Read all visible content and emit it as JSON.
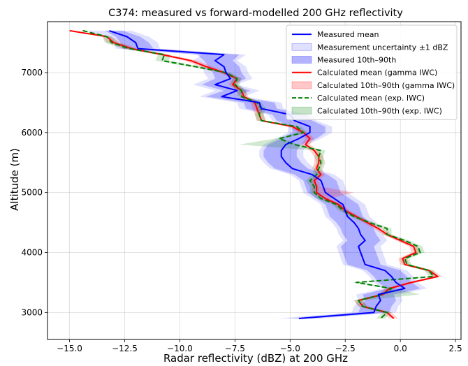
{
  "chart_data": {
    "type": "line",
    "title": "C374: measured vs forward-modelled 200 GHz reflectivity",
    "xlabel": "Radar reflectivity (dBZ) at 200 GHz",
    "ylabel": "Altitude (m)",
    "xlim": [
      -16,
      2.75
    ],
    "ylim": [
      2550,
      7850
    ],
    "xticks": [
      -15,
      -12.5,
      -10,
      -7.5,
      -5,
      -2.5,
      0,
      2.5
    ],
    "xtick_labels": [
      "−15.0",
      "−12.5",
      "−10.0",
      "−7.5",
      "−5.0",
      "−2.5",
      "0.0",
      "2.5"
    ],
    "yticks": [
      3000,
      4000,
      5000,
      6000,
      7000
    ],
    "ytick_labels": [
      "3000",
      "4000",
      "5000",
      "6000",
      "7000"
    ],
    "grid": true,
    "legend_position": "top-right",
    "altitude": [
      7700,
      7600,
      7500,
      7400,
      7300,
      7200,
      7100,
      7000,
      6900,
      6800,
      6700,
      6600,
      6500,
      6400,
      6300,
      6200,
      6100,
      6000,
      5900,
      5800,
      5700,
      5600,
      5500,
      5400,
      5300,
      5200,
      5100,
      5000,
      4900,
      4800,
      4700,
      4600,
      4500,
      4400,
      4300,
      4200,
      4100,
      4000,
      3900,
      3800,
      3700,
      3600,
      3500,
      3400,
      3300,
      3200,
      3100,
      3000,
      2900
    ],
    "series": [
      {
        "name": "Measured mean",
        "style": "solid",
        "color": "#0000ff",
        "values": [
          -13.2,
          -12.4,
          -12.0,
          -11.9,
          -8.0,
          -8.4,
          -8.0,
          -7.9,
          -7.7,
          -8.4,
          -7.4,
          -8.1,
          -6.4,
          -6.3,
          -5.0,
          -4.8,
          -4.1,
          -4.1,
          -4.6,
          -5.2,
          -5.4,
          -5.4,
          -5.2,
          -4.9,
          -4.0,
          -3.6,
          -3.5,
          -3.4,
          -3.0,
          -2.6,
          -2.5,
          -2.4,
          -2.1,
          -1.9,
          -1.8,
          -1.6,
          -1.9,
          -1.8,
          -1.7,
          -1.6,
          -0.7,
          -0.4,
          -0.2,
          0.2,
          -1.0,
          -0.9,
          -1.1,
          -1.2,
          -4.6
        ]
      },
      {
        "name": "Calculated mean (gamma IWC)",
        "style": "solid",
        "color": "#ff0000",
        "values": [
          -15.0,
          -13.3,
          -13.0,
          -12.2,
          -10.8,
          -9.5,
          -8.8,
          -8.0,
          -7.4,
          -7.6,
          -7.2,
          -7.1,
          -6.6,
          -6.5,
          -6.4,
          -6.3,
          -4.9,
          -4.4,
          -4.1,
          -4.3,
          -3.9,
          -3.7,
          -3.7,
          -3.8,
          -3.6,
          -3.9,
          -3.8,
          -3.8,
          -3.4,
          -2.8,
          -2.5,
          -2.0,
          -1.5,
          -1.0,
          -0.6,
          0.0,
          0.6,
          0.7,
          0.1,
          0.2,
          1.3,
          1.7,
          0.5,
          -0.5,
          -0.8,
          -1.9,
          -1.7,
          -0.6,
          -0.3
        ]
      },
      {
        "name": "Calculated mean (exp. IWC)",
        "style": "dashed",
        "color": "#008000",
        "values": [
          -14.4,
          -13.3,
          -13.1,
          -12.3,
          -10.7,
          -10.8,
          -9.3,
          -7.9,
          -7.4,
          -7.5,
          -7.2,
          -7.2,
          -6.5,
          -6.3,
          -6.4,
          -6.3,
          -4.7,
          -4.4,
          -5.5,
          -4.8,
          -3.6,
          -3.7,
          -3.6,
          -3.7,
          -3.8,
          -4.1,
          -3.9,
          -3.9,
          -3.6,
          -2.9,
          -2.6,
          -2.1,
          -1.4,
          -0.6,
          -0.6,
          0.2,
          0.8,
          0.9,
          0.2,
          0.3,
          1.3,
          1.5,
          -2.0,
          -0.4,
          -0.8,
          -1.9,
          -1.7,
          -0.6,
          -0.9
        ]
      }
    ],
    "bands": [
      {
        "name": "Measurement uncertainty ±1 dBZ",
        "color": "#0000ff",
        "opacity": 0.12,
        "low": [
          -14.2,
          -13.4,
          -13.0,
          -12.9,
          -9.0,
          -9.4,
          -9.0,
          -8.9,
          -8.7,
          -9.4,
          -8.4,
          -9.1,
          -7.4,
          -7.3,
          -6.0,
          -5.8,
          -5.1,
          -5.1,
          -5.6,
          -6.2,
          -6.4,
          -6.4,
          -6.2,
          -5.9,
          -5.0,
          -4.6,
          -4.5,
          -4.4,
          -4.0,
          -3.6,
          -3.5,
          -3.4,
          -3.1,
          -2.9,
          -2.8,
          -2.6,
          -2.9,
          -2.8,
          -2.7,
          -2.6,
          -1.7,
          -1.4,
          -1.2,
          -0.8,
          -2.0,
          -1.9,
          -2.1,
          -2.2,
          -5.6
        ],
        "high": [
          -12.2,
          -11.4,
          -11.0,
          -10.9,
          -7.0,
          -7.4,
          -7.0,
          -6.9,
          -6.7,
          -7.4,
          -6.4,
          -7.1,
          -5.4,
          -5.3,
          -4.0,
          -3.8,
          -3.1,
          -3.1,
          -3.6,
          -4.2,
          -4.4,
          -4.4,
          -4.2,
          -3.9,
          -3.0,
          -2.6,
          -2.5,
          -2.4,
          -2.0,
          -1.6,
          -1.5,
          -1.4,
          -1.1,
          -0.9,
          -0.8,
          -0.6,
          -0.9,
          -0.8,
          -0.7,
          -0.6,
          0.3,
          0.6,
          0.8,
          1.2,
          0.0,
          0.1,
          -0.1,
          -0.2,
          -3.6
        ]
      },
      {
        "name": "Measured 10th–90th",
        "color": "#0000ff",
        "opacity": 0.22,
        "low": [
          -13.4,
          -12.9,
          -12.7,
          -12.6,
          -9.2,
          -8.9,
          -8.7,
          -8.5,
          -8.4,
          -9.0,
          -8.0,
          -8.8,
          -7.1,
          -7.0,
          -5.8,
          -5.6,
          -4.9,
          -4.9,
          -5.4,
          -6.0,
          -6.2,
          -6.2,
          -6.0,
          -5.7,
          -4.8,
          -4.4,
          -4.3,
          -4.2,
          -3.8,
          -3.4,
          -3.3,
          -3.2,
          -2.9,
          -2.7,
          -2.6,
          -2.4,
          -2.7,
          -2.6,
          -2.5,
          -2.4,
          -1.5,
          -1.2,
          -1.0,
          -0.6,
          -1.7,
          -1.6,
          -1.8,
          -1.9,
          -5.1
        ],
        "high": [
          -12.6,
          -11.8,
          -11.4,
          -11.2,
          -7.3,
          -7.6,
          -7.3,
          -7.2,
          -7.0,
          -7.7,
          -6.8,
          -7.4,
          -5.7,
          -5.6,
          -4.2,
          -4.0,
          -3.4,
          -3.4,
          -3.8,
          -4.5,
          -4.7,
          -4.7,
          -4.5,
          -4.2,
          -3.3,
          -2.9,
          -2.8,
          -2.7,
          -2.3,
          -1.9,
          -1.8,
          -1.7,
          -1.4,
          -1.2,
          -1.1,
          -0.9,
          -1.2,
          -1.1,
          -1.0,
          -0.9,
          0.0,
          0.3,
          0.5,
          0.9,
          -0.3,
          -0.2,
          -0.4,
          -0.5,
          -4.1
        ]
      },
      {
        "name": "Calculated 10th–90th (gamma IWC)",
        "color": "#ff0000",
        "opacity": 0.18,
        "low": [
          -15.0,
          -13.5,
          -13.3,
          -12.5,
          -11.0,
          -9.8,
          -9.1,
          -8.2,
          -7.6,
          -7.8,
          -7.4,
          -7.3,
          -6.8,
          -6.7,
          -6.6,
          -6.5,
          -5.1,
          -4.6,
          -4.3,
          -4.5,
          -4.1,
          -3.9,
          -3.9,
          -4.0,
          -3.8,
          -4.1,
          -4.0,
          -4.0,
          -3.6,
          -3.0,
          -2.7,
          -2.2,
          -1.7,
          -1.2,
          -0.8,
          -0.2,
          0.4,
          0.5,
          -0.1,
          0.0,
          1.1,
          1.5,
          0.3,
          -0.7,
          -1.0,
          -2.1,
          -1.9,
          -0.8,
          -0.5
        ],
        "high": [
          -15.0,
          -13.1,
          -12.7,
          -11.9,
          -10.5,
          -9.2,
          -8.5,
          -7.8,
          -7.2,
          -7.4,
          -7.0,
          -6.9,
          -6.4,
          -6.3,
          -6.2,
          -6.1,
          -4.7,
          -4.2,
          -3.9,
          -4.1,
          -3.7,
          -3.5,
          -3.5,
          -3.6,
          -3.4,
          -3.7,
          -3.6,
          -2.1,
          -3.2,
          -2.6,
          -2.3,
          -1.8,
          -1.3,
          -0.8,
          -0.4,
          0.2,
          0.8,
          0.9,
          0.3,
          0.4,
          1.5,
          1.9,
          0.7,
          -0.3,
          -0.6,
          -1.7,
          -1.5,
          -0.4,
          -0.1
        ]
      },
      {
        "name": "Calculated 10th–90th (exp. IWC)",
        "color": "#008000",
        "opacity": 0.18,
        "low": [
          -14.4,
          -13.5,
          -13.4,
          -12.6,
          -11.0,
          -11.1,
          -9.6,
          -8.1,
          -7.6,
          -7.7,
          -7.4,
          -7.4,
          -6.7,
          -6.5,
          -6.6,
          -6.5,
          -4.9,
          -4.6,
          -5.7,
          -7.3,
          -3.8,
          -3.9,
          -3.8,
          -3.9,
          -4.0,
          -4.3,
          -4.1,
          -4.1,
          -3.8,
          -3.1,
          -2.8,
          -2.3,
          -1.6,
          -0.8,
          -0.8,
          0.0,
          0.6,
          0.7,
          0.0,
          0.1,
          1.1,
          1.3,
          -2.2,
          -0.6,
          -1.0,
          -2.1,
          -1.9,
          -0.8,
          -1.1
        ],
        "high": [
          -14.4,
          -13.1,
          -12.8,
          -12.0,
          -10.4,
          -10.5,
          -9.0,
          -7.7,
          -7.2,
          -7.3,
          -7.0,
          -7.0,
          -6.3,
          -6.1,
          -6.2,
          -6.1,
          -4.5,
          -4.2,
          -5.3,
          -4.6,
          -3.4,
          -3.5,
          -3.4,
          -3.5,
          -3.6,
          -3.9,
          -3.7,
          -3.7,
          -3.4,
          -2.7,
          -2.4,
          -1.9,
          -1.2,
          -0.4,
          -0.4,
          0.4,
          1.0,
          1.1,
          0.4,
          0.5,
          1.5,
          1.7,
          -1.8,
          -0.2,
          0.9,
          -1.7,
          -1.5,
          -0.4,
          -0.7
        ]
      }
    ]
  },
  "legend": {
    "items": [
      {
        "label": "Measured mean",
        "kind": "line",
        "color": "#0000ff",
        "dash": false
      },
      {
        "label": "Measurement uncertainty ±1 dBZ",
        "kind": "patch",
        "color": "#0000ff",
        "opacity": 0.12
      },
      {
        "label": "Measured 10th–90th",
        "kind": "patch",
        "color": "#0000ff",
        "opacity": 0.3
      },
      {
        "label": "Calculated mean (gamma IWC)",
        "kind": "line",
        "color": "#ff0000",
        "dash": false
      },
      {
        "label": "Calculated 10th–90th (gamma IWC)",
        "kind": "patch",
        "color": "#ff0000",
        "opacity": 0.22
      },
      {
        "label": "Calculated mean (exp. IWC)",
        "kind": "line",
        "color": "#008000",
        "dash": true
      },
      {
        "label": "Calculated 10th–90th (exp. IWC)",
        "kind": "patch",
        "color": "#008000",
        "opacity": 0.22
      }
    ]
  }
}
